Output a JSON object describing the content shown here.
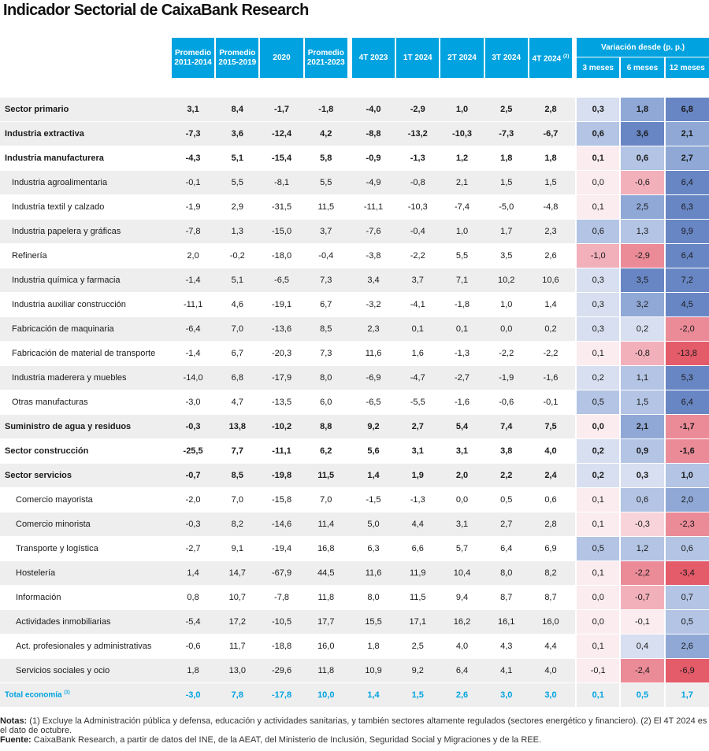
{
  "title": "Indicador Sectorial de CaixaBank Research",
  "headers": {
    "label": "",
    "cols": [
      "Promedio 2011-2014",
      "Promedio 2015-2019",
      "2020",
      "Promedio 2021-2023",
      "4T 2023",
      "1T 2024",
      "2T 2024",
      "3T 2024",
      "4T 2024"
    ],
    "col_break_at": [
      1,
      1,
      0,
      1,
      0,
      0,
      0,
      0,
      0
    ],
    "q4_note": "(2)",
    "variation_group": "Variación desde (p. p.)",
    "variation_cols": [
      "3 meses",
      "6 meses",
      "12 meses"
    ]
  },
  "rows": [
    {
      "label": "Sector primario",
      "level": 0,
      "shade": true,
      "values": [
        "3,1",
        "8,4",
        "-1,7",
        "-1,8",
        "-4,0",
        "-2,9",
        "1,0",
        "2,5",
        "2,8"
      ],
      "variation": [
        "0,3",
        "1,8",
        "6,8"
      ]
    },
    {
      "label": "Industria extractiva",
      "level": 0,
      "shade": true,
      "values": [
        "-7,3",
        "3,6",
        "-12,4",
        "4,2",
        "-8,8",
        "-13,2",
        "-10,3",
        "-7,3",
        "-6,7"
      ],
      "variation": [
        "0,6",
        "3,6",
        "2,1"
      ]
    },
    {
      "label": "Industria manufacturera",
      "level": 0,
      "shade": false,
      "values": [
        "-4,3",
        "5,1",
        "-15,4",
        "5,8",
        "-0,9",
        "-1,3",
        "1,2",
        "1,8",
        "1,8"
      ],
      "variation": [
        "0,1",
        "0,6",
        "2,7"
      ]
    },
    {
      "label": "Industria agroalimentaria",
      "level": 1,
      "shade": true,
      "values": [
        "-0,1",
        "5,5",
        "-8,1",
        "5,5",
        "-4,9",
        "-0,8",
        "2,1",
        "1,5",
        "1,5"
      ],
      "variation": [
        "0,0",
        "-0,6",
        "6,4"
      ]
    },
    {
      "label": "Industria textil y calzado",
      "level": 1,
      "shade": false,
      "values": [
        "-1,9",
        "2,9",
        "-31,5",
        "11,5",
        "-11,1",
        "-10,3",
        "-7,4",
        "-5,0",
        "-4,8"
      ],
      "variation": [
        "0,1",
        "2,5",
        "6,3"
      ]
    },
    {
      "label": "Industria papelera y gráficas",
      "level": 1,
      "shade": true,
      "values": [
        "-7,8",
        "1,3",
        "-15,0",
        "3,7",
        "-7,6",
        "-0,4",
        "1,0",
        "1,7",
        "2,3"
      ],
      "variation": [
        "0,6",
        "1,3",
        "9,9"
      ]
    },
    {
      "label": "Refinería",
      "level": 1,
      "shade": false,
      "values": [
        "2,0",
        "-0,2",
        "-18,0",
        "-0,4",
        "-3,8",
        "-2,2",
        "5,5",
        "3,5",
        "2,6"
      ],
      "variation": [
        "-1,0",
        "-2,9",
        "6,4"
      ]
    },
    {
      "label": "Industria química y farmacia",
      "level": 1,
      "shade": true,
      "values": [
        "-1,4",
        "5,1",
        "-6,5",
        "7,3",
        "3,4",
        "3,7",
        "7,1",
        "10,2",
        "10,6"
      ],
      "variation": [
        "0,3",
        "3,5",
        "7,2"
      ]
    },
    {
      "label": "Industria auxiliar construcción",
      "level": 1,
      "shade": false,
      "values": [
        "-11,1",
        "4,6",
        "-19,1",
        "6,7",
        "-3,2",
        "-4,1",
        "-1,8",
        "1,0",
        "1,4"
      ],
      "variation": [
        "0,3",
        "3,2",
        "4,5"
      ]
    },
    {
      "label": "Fabricación de maquinaria",
      "level": 1,
      "shade": true,
      "values": [
        "-6,4",
        "7,0",
        "-13,6",
        "8,5",
        "2,3",
        "0,1",
        "0,1",
        "0,0",
        "0,2"
      ],
      "variation": [
        "0,3",
        "0,2",
        "-2,0"
      ]
    },
    {
      "label": "Fabricación de material de transporte",
      "level": 1,
      "shade": false,
      "values": [
        "-1,4",
        "6,7",
        "-20,3",
        "7,3",
        "11,6",
        "1,6",
        "-1,3",
        "-2,2",
        "-2,2"
      ],
      "variation": [
        "0,1",
        "-0,8",
        "-13,8"
      ]
    },
    {
      "label": "Industria maderera y muebles",
      "level": 1,
      "shade": true,
      "values": [
        "-14,0",
        "6,8",
        "-17,9",
        "8,0",
        "-6,9",
        "-4,7",
        "-2,7",
        "-1,9",
        "-1,6"
      ],
      "variation": [
        "0,2",
        "1,1",
        "5,3"
      ]
    },
    {
      "label": "Otras manufacturas",
      "level": 1,
      "shade": false,
      "values": [
        "-3,0",
        "4,7",
        "-13,5",
        "6,0",
        "-6,5",
        "-5,5",
        "-1,6",
        "-0,6",
        "-0,1"
      ],
      "variation": [
        "0,5",
        "1,5",
        "6,4"
      ]
    },
    {
      "label": "Suministro de agua y residuos",
      "level": 0,
      "shade": true,
      "values": [
        "-0,3",
        "13,8",
        "-10,2",
        "8,8",
        "9,2",
        "2,7",
        "5,4",
        "7,4",
        "7,5"
      ],
      "variation": [
        "0,0",
        "2,1",
        "-1,7"
      ]
    },
    {
      "label": "Sector construcción",
      "level": 0,
      "shade": false,
      "values": [
        "-25,5",
        "7,7",
        "-11,1",
        "6,2",
        "5,6",
        "3,1",
        "3,1",
        "3,8",
        "4,0"
      ],
      "variation": [
        "0,2",
        "0,9",
        "-1,6"
      ]
    },
    {
      "label": "Sector servicios",
      "level": 0,
      "shade": true,
      "values": [
        "-0,7",
        "8,5",
        "-19,8",
        "11,5",
        "1,4",
        "1,9",
        "2,0",
        "2,2",
        "2,4"
      ],
      "variation": [
        "0,2",
        "0,3",
        "1,0"
      ]
    },
    {
      "label": "Comercio mayorista",
      "level": 2,
      "shade": false,
      "values": [
        "-2,0",
        "7,0",
        "-15,8",
        "7,0",
        "-1,5",
        "-1,3",
        "0,0",
        "0,5",
        "0,6"
      ],
      "variation": [
        "0,1",
        "0,6",
        "2,0"
      ]
    },
    {
      "label": "Comercio minorista",
      "level": 2,
      "shade": true,
      "values": [
        "-0,3",
        "8,2",
        "-14,6",
        "11,4",
        "5,0",
        "4,4",
        "3,1",
        "2,7",
        "2,8"
      ],
      "variation": [
        "0,1",
        "-0,3",
        "-2,3"
      ]
    },
    {
      "label": "Transporte y logística",
      "level": 2,
      "shade": false,
      "values": [
        "-2,7",
        "9,1",
        "-19,4",
        "16,8",
        "6,3",
        "6,6",
        "5,7",
        "6,4",
        "6,9"
      ],
      "variation": [
        "0,5",
        "1,2",
        "0,6"
      ]
    },
    {
      "label": "Hostelería",
      "level": 2,
      "shade": true,
      "values": [
        "1,4",
        "14,7",
        "-67,9",
        "44,5",
        "11,6",
        "11,9",
        "10,4",
        "8,0",
        "8,2"
      ],
      "variation": [
        "0,1",
        "-2,2",
        "-3,4"
      ]
    },
    {
      "label": "Información",
      "level": 2,
      "shade": false,
      "values": [
        "0,8",
        "10,7",
        "-7,8",
        "11,8",
        "8,0",
        "11,5",
        "9,4",
        "8,7",
        "8,7"
      ],
      "variation": [
        "0,0",
        "-0,7",
        "0,7"
      ]
    },
    {
      "label": "Actividades inmobiliarias",
      "level": 2,
      "shade": true,
      "values": [
        "-5,4",
        "17,2",
        "-10,5",
        "17,7",
        "15,5",
        "17,1",
        "16,2",
        "16,1",
        "16,0"
      ],
      "variation": [
        "0,0",
        "-0,1",
        "0,5"
      ]
    },
    {
      "label": "Act. profesionales y administrativas",
      "level": 2,
      "shade": false,
      "values": [
        "-0,6",
        "11,7",
        "-18,8",
        "16,0",
        "1,8",
        "2,5",
        "4,0",
        "4,3",
        "4,4"
      ],
      "variation": [
        "0,1",
        "0,4",
        "2,6"
      ]
    },
    {
      "label": "Servicios sociales y ocio",
      "level": 2,
      "shade": true,
      "values": [
        "1,8",
        "13,0",
        "-29,6",
        "11,8",
        "10,9",
        "9,2",
        "6,4",
        "4,1",
        "4,0"
      ],
      "variation": [
        "-0,1",
        "-2,4",
        "-6,9"
      ]
    }
  ],
  "bold_rows": [
    0,
    1,
    2,
    13,
    14,
    15
  ],
  "total": {
    "label": "Total economía",
    "note": "(1)",
    "values": [
      "-3,0",
      "7,8",
      "-17,8",
      "10,0",
      "1,4",
      "1,5",
      "2,6",
      "3,0",
      "3,0"
    ],
    "variation": [
      "0,1",
      "0,5",
      "1,7"
    ]
  },
  "colors": {
    "header_blue": "#00a3e0",
    "total_text": "#00a3e0",
    "row_shade": "#eeeeee",
    "positive_scale": [
      "#f2f4fb",
      "#d7dff0",
      "#b3c4e4",
      "#8fa8d6",
      "#6886c4"
    ],
    "negative_scale": [
      "#fbecef",
      "#f8d4da",
      "#f2b0bb",
      "#eb8b98",
      "#e45b6a"
    ]
  },
  "notes": {
    "notas_label": "Notas:",
    "notas_text": " (1)  Excluye la Administración pública y defensa, educación y actividades sanitarias, y también sectores altamente regulados (sectores energético y financiero). (2) El 4T 2024 es el dato de octubre.",
    "fuente_label": "Fuente:",
    "fuente_text": " CaixaBank Research, a partir de datos del INE, de la AEAT, del Ministerio de Inclusión, Seguridad Social y Migraciones y de la REE."
  }
}
